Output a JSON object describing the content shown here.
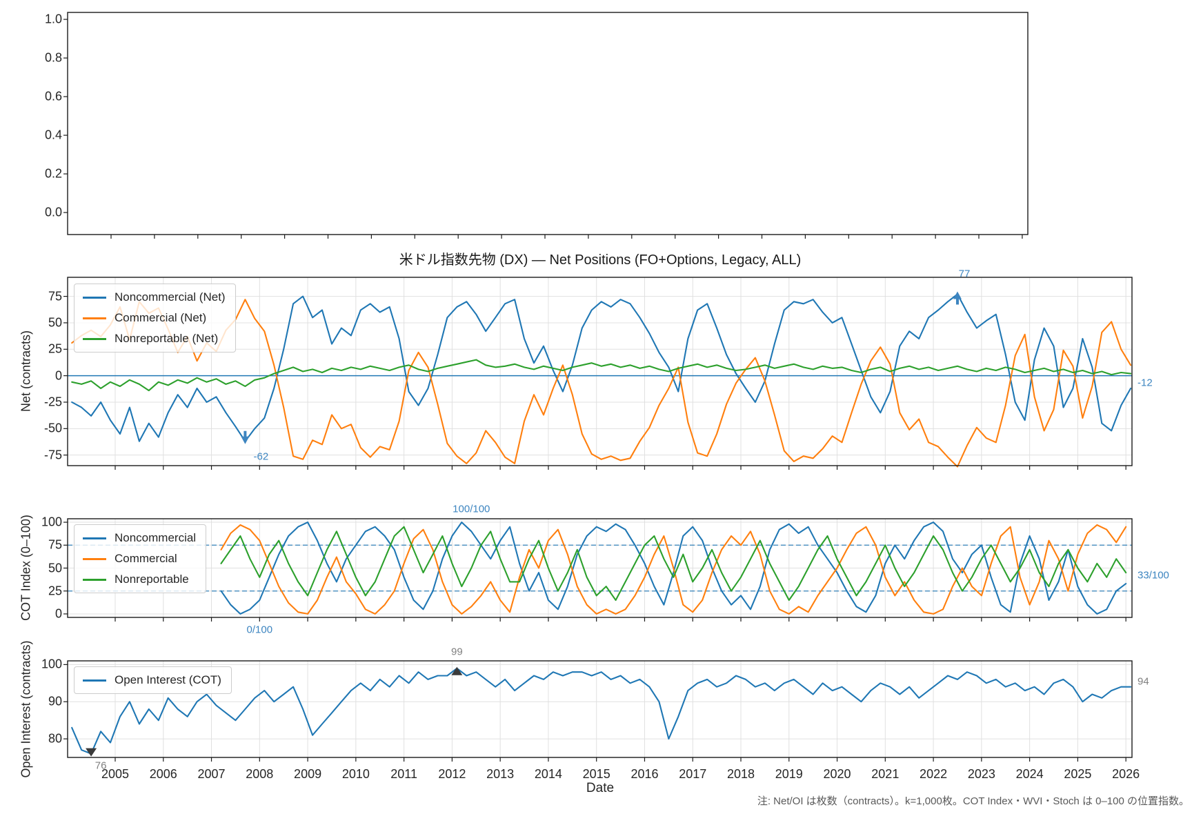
{
  "note": "注: Net/OI は枚数（contracts）。k=1,000枚。COT Index・WVI・Stoch は 0–100 の位置指数。",
  "xaxis": {
    "label": "Date",
    "ticks": [
      2005,
      2006,
      2007,
      2008,
      2009,
      2010,
      2011,
      2012,
      2013,
      2014,
      2015,
      2016,
      2017,
      2018,
      2019,
      2020,
      2021,
      2022,
      2023,
      2024,
      2025,
      2026
    ]
  },
  "net_chart": {
    "title": "米ドル指数先物 (DX) — Net Positions (FO+Options, Legacy, ALL)",
    "ylabel": "Net (contracts)"
  },
  "cot_chart": {
    "ylabel": "COT Index (0–100)"
  },
  "oi_chart": {
    "ylabel": "Open Interest (contracts)"
  },
  "colors": {
    "blue": "#1f77b4",
    "orange": "#ff7f0e",
    "green": "#2ca02c",
    "anno_blue": "#3d85c0",
    "anno_gray": "#7f7f7f",
    "marker_dark": "#3a3a3a",
    "spine": "#1a1a1a",
    "grid": "#e0e0e0"
  },
  "chart_data": [
    {
      "id": "price",
      "type": "line",
      "title": "",
      "ylabel": "",
      "yticks": [
        "1.0",
        "0.8",
        "0.6",
        "0.4",
        "0.2",
        "0.0"
      ],
      "ytick_vals": [
        1.0,
        0.8,
        0.6,
        0.4,
        0.2,
        0.0
      ],
      "ylim": [
        0,
        1
      ],
      "series": []
    },
    {
      "id": "net",
      "type": "line",
      "title": "米ドル指数先物 (DX) — Net Positions (FO+Options, Legacy, ALL)",
      "ylabel": "Net (contracts)",
      "ylim": [
        -85,
        93
      ],
      "yticks": [
        "75",
        "50",
        "25",
        "0",
        "-25",
        "-50",
        "-75"
      ],
      "ytick_vals": [
        75,
        50,
        25,
        0,
        -25,
        -50,
        -75
      ],
      "zero_line": 0,
      "x_start": 2004.1,
      "x_step": 0.2,
      "series": [
        {
          "name": "Noncommercial (Net)",
          "color": "#1f77b4",
          "values": [
            -25,
            -30,
            -38,
            -25,
            -42,
            -55,
            -30,
            -62,
            -45,
            -58,
            -35,
            -18,
            -30,
            -12,
            -25,
            -20,
            -35,
            -48,
            -62,
            -50,
            -40,
            -12,
            25,
            68,
            75,
            55,
            62,
            30,
            45,
            38,
            62,
            68,
            60,
            65,
            35,
            -15,
            -28,
            -12,
            20,
            55,
            65,
            70,
            58,
            42,
            55,
            68,
            72,
            35,
            12,
            28,
            5,
            -15,
            10,
            45,
            62,
            70,
            65,
            72,
            68,
            55,
            40,
            22,
            8,
            -15,
            35,
            62,
            68,
            45,
            20,
            2,
            -12,
            -25,
            -5,
            30,
            62,
            70,
            68,
            72,
            60,
            50,
            55,
            30,
            5,
            -20,
            -35,
            -15,
            28,
            42,
            35,
            55,
            62,
            70,
            77,
            60,
            45,
            52,
            58,
            20,
            -25,
            -42,
            15,
            45,
            28,
            -30,
            -12,
            35,
            8,
            -45,
            -52,
            -28,
            -12
          ]
        },
        {
          "name": "Commercial (Net)",
          "color": "#ff7f0e",
          "values": [
            31,
            38,
            43,
            37,
            48,
            65,
            34,
            70,
            59,
            64,
            44,
            22,
            37,
            14,
            31,
            23,
            43,
            53,
            72,
            54,
            42,
            10,
            -30,
            -76,
            -79,
            -61,
            -65,
            -37,
            -50,
            -46,
            -68,
            -77,
            -67,
            -70,
            -43,
            5,
            22,
            8,
            -27,
            -64,
            -76,
            -83,
            -73,
            -52,
            -63,
            -77,
            -83,
            -43,
            -18,
            -37,
            -12,
            10,
            -18,
            -55,
            -74,
            -79,
            -76,
            -80,
            -78,
            -62,
            -49,
            -28,
            -12,
            8,
            -44,
            -73,
            -76,
            -55,
            -27,
            -7,
            6,
            17,
            -5,
            -37,
            -71,
            -81,
            -76,
            -78,
            -69,
            -57,
            -63,
            -35,
            -8,
            14,
            27,
            11,
            -35,
            -51,
            -41,
            -63,
            -67,
            -77,
            -86,
            -66,
            -49,
            -59,
            -63,
            -28,
            19,
            39,
            -20,
            -52,
            -32,
            24,
            9,
            -40,
            -10,
            41,
            51,
            25,
            10
          ]
        },
        {
          "name": "Nonreportable (Net)",
          "color": "#2ca02c",
          "values": [
            -6,
            -8,
            -5,
            -12,
            -6,
            -10,
            -4,
            -8,
            -14,
            -6,
            -9,
            -4,
            -7,
            -2,
            -6,
            -3,
            -8,
            -5,
            -10,
            -4,
            -2,
            2,
            5,
            8,
            4,
            6,
            3,
            7,
            5,
            8,
            6,
            9,
            7,
            5,
            8,
            10,
            6,
            4,
            7,
            9,
            11,
            13,
            15,
            10,
            8,
            9,
            11,
            8,
            6,
            9,
            7,
            5,
            8,
            10,
            12,
            9,
            11,
            8,
            10,
            7,
            9,
            6,
            4,
            7,
            9,
            11,
            8,
            10,
            7,
            5,
            6,
            8,
            10,
            7,
            9,
            11,
            8,
            6,
            9,
            7,
            8,
            5,
            3,
            6,
            8,
            4,
            7,
            9,
            6,
            8,
            5,
            7,
            9,
            6,
            4,
            7,
            5,
            8,
            6,
            3,
            5,
            7,
            4,
            6,
            3,
            5,
            2,
            4,
            1,
            3,
            2
          ]
        }
      ],
      "annotations": [
        {
          "text": "77",
          "t": 2022.5,
          "v": 77,
          "style": "blue",
          "marker": "arrow-up"
        },
        {
          "text": "-62",
          "t": 2007.7,
          "v": -62,
          "style": "blue",
          "marker": "arrow-down"
        },
        {
          "text": "-12",
          "side": "right",
          "v": -12,
          "dy": -8,
          "style": "blue"
        }
      ]
    },
    {
      "id": "cot",
      "type": "line",
      "title": "",
      "ylabel": "COT Index (0–100)",
      "ylim": [
        0,
        100
      ],
      "yticks": [
        "100",
        "75",
        "50",
        "25",
        "0"
      ],
      "ytick_vals": [
        100,
        75,
        50,
        25,
        0
      ],
      "hlines_dashed": [
        75,
        25
      ],
      "x_start": 2007.2,
      "x_step": 0.2,
      "series": [
        {
          "name": "Noncommercial",
          "color": "#1f77b4",
          "values": [
            25,
            10,
            0,
            5,
            15,
            40,
            65,
            85,
            95,
            100,
            80,
            55,
            35,
            60,
            75,
            90,
            95,
            85,
            70,
            40,
            15,
            5,
            25,
            60,
            85,
            100,
            90,
            75,
            60,
            80,
            95,
            55,
            25,
            45,
            15,
            5,
            30,
            65,
            85,
            95,
            90,
            98,
            92,
            75,
            55,
            30,
            10,
            45,
            85,
            95,
            80,
            50,
            25,
            10,
            20,
            5,
            30,
            70,
            92,
            98,
            88,
            95,
            75,
            60,
            45,
            25,
            8,
            2,
            20,
            55,
            75,
            60,
            80,
            95,
            100,
            90,
            60,
            45,
            65,
            75,
            40,
            10,
            2,
            55,
            85,
            60,
            15,
            35,
            70,
            30,
            10,
            0,
            5,
            25,
            33
          ]
        },
        {
          "name": "Commercial",
          "color": "#ff7f0e",
          "values": [
            70,
            88,
            97,
            92,
            80,
            55,
            30,
            12,
            2,
            0,
            15,
            40,
            62,
            35,
            22,
            5,
            0,
            10,
            25,
            55,
            82,
            92,
            70,
            35,
            10,
            0,
            8,
            20,
            35,
            15,
            2,
            40,
            70,
            50,
            80,
            92,
            65,
            30,
            10,
            0,
            5,
            0,
            5,
            20,
            40,
            65,
            85,
            50,
            10,
            2,
            15,
            45,
            70,
            85,
            75,
            90,
            65,
            25,
            5,
            0,
            8,
            2,
            20,
            35,
            50,
            70,
            88,
            95,
            75,
            40,
            20,
            35,
            15,
            2,
            0,
            5,
            30,
            50,
            30,
            20,
            55,
            85,
            95,
            40,
            10,
            35,
            80,
            60,
            25,
            65,
            88,
            97,
            92,
            78,
            95
          ]
        },
        {
          "name": "Nonreportable",
          "color": "#2ca02c",
          "values": [
            55,
            70,
            85,
            60,
            40,
            65,
            80,
            55,
            35,
            20,
            45,
            70,
            90,
            65,
            40,
            20,
            35,
            60,
            85,
            95,
            70,
            45,
            65,
            85,
            55,
            30,
            50,
            75,
            90,
            60,
            35,
            35,
            60,
            80,
            50,
            25,
            45,
            70,
            40,
            20,
            30,
            15,
            35,
            55,
            75,
            85,
            60,
            40,
            65,
            35,
            50,
            70,
            45,
            25,
            40,
            60,
            80,
            55,
            35,
            15,
            30,
            50,
            70,
            85,
            60,
            40,
            20,
            35,
            55,
            75,
            50,
            30,
            45,
            65,
            85,
            70,
            45,
            25,
            40,
            60,
            75,
            55,
            35,
            50,
            70,
            45,
            30,
            55,
            70,
            50,
            35,
            55,
            40,
            60,
            45
          ]
        }
      ],
      "annotations": [
        {
          "text": "100/100",
          "t": 2012.4,
          "v": 100,
          "style": "blue",
          "pos": "above-axis"
        },
        {
          "text": "0/100",
          "t": 2008.0,
          "v": 0,
          "style": "blue",
          "pos": "below-axis"
        },
        {
          "text": "33/100",
          "side": "right",
          "v": 33,
          "dy": -12,
          "style": "blue"
        }
      ]
    },
    {
      "id": "oi",
      "type": "line",
      "title": "",
      "ylabel": "Open Interest (contracts)",
      "ylim": [
        76,
        100
      ],
      "yticks": [
        "100",
        "90",
        "80"
      ],
      "ytick_vals": [
        100,
        90,
        80
      ],
      "x_start": 2004.1,
      "x_step": 0.2,
      "xlabel": "Date",
      "series": [
        {
          "name": "Open Interest (COT)",
          "color": "#1f77b4",
          "values": [
            83,
            77,
            76,
            82,
            79,
            86,
            90,
            84,
            88,
            85,
            91,
            88,
            86,
            90,
            92,
            89,
            87,
            85,
            88,
            91,
            93,
            90,
            92,
            94,
            88,
            81,
            84,
            87,
            90,
            93,
            95,
            93,
            96,
            94,
            97,
            95,
            98,
            96,
            97,
            97,
            99,
            97,
            98,
            96,
            94,
            96,
            93,
            95,
            97,
            96,
            98,
            97,
            98,
            98,
            97,
            98,
            96,
            97,
            95,
            96,
            94,
            90,
            80,
            86,
            93,
            95,
            96,
            94,
            95,
            97,
            96,
            94,
            95,
            93,
            95,
            96,
            94,
            92,
            95,
            93,
            94,
            92,
            90,
            93,
            95,
            94,
            92,
            94,
            91,
            93,
            95,
            97,
            96,
            98,
            97,
            95,
            96,
            94,
            95,
            93,
            94,
            92,
            95,
            96,
            94,
            90,
            92,
            91,
            93,
            94,
            94
          ]
        }
      ],
      "annotations": [
        {
          "text": "99",
          "t": 2012.1,
          "v": 99,
          "style": "gray",
          "marker": "tri-up",
          "pos": "above-axis"
        },
        {
          "text": "76",
          "t": 2004.5,
          "v": 76,
          "style": "gray",
          "marker": "tri-down",
          "pos": "below-right"
        },
        {
          "text": "94",
          "side": "right",
          "v": 94,
          "dy": -8,
          "style": "gray"
        }
      ]
    }
  ]
}
